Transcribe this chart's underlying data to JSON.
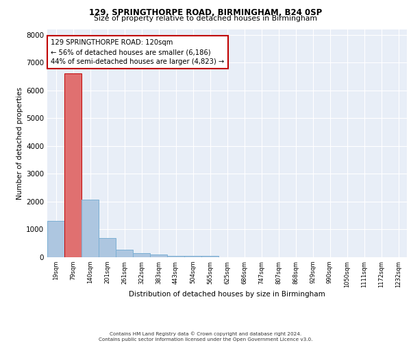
{
  "title1": "129, SPRINGTHORPE ROAD, BIRMINGHAM, B24 0SP",
  "title2": "Size of property relative to detached houses in Birmingham",
  "xlabel": "Distribution of detached houses by size in Birmingham",
  "ylabel": "Number of detached properties",
  "bin_labels": [
    "19sqm",
    "79sqm",
    "140sqm",
    "201sqm",
    "261sqm",
    "322sqm",
    "383sqm",
    "443sqm",
    "504sqm",
    "565sqm",
    "625sqm",
    "686sqm",
    "747sqm",
    "807sqm",
    "868sqm",
    "929sqm",
    "990sqm",
    "1050sqm",
    "1111sqm",
    "1172sqm",
    "1232sqm"
  ],
  "bar_values": [
    1300,
    6600,
    2080,
    690,
    280,
    150,
    100,
    60,
    50,
    55,
    0,
    0,
    0,
    0,
    0,
    0,
    0,
    0,
    0,
    0,
    0
  ],
  "highlight_bin": 1,
  "normal_bar_color": "#adc6e0",
  "normal_bar_edge": "#7bafd4",
  "highlight_bar_color": "#e07070",
  "highlight_bar_edge": "#c00000",
  "background_color": "#e8eef7",
  "grid_color": "#ffffff",
  "annotation_text": "129 SPRINGTHORPE ROAD: 120sqm\n← 56% of detached houses are smaller (6,186)\n44% of semi-detached houses are larger (4,823) →",
  "annotation_box_color": "#ffffff",
  "annotation_box_edge": "#c00000",
  "ylim": [
    0,
    8200
  ],
  "yticks": [
    0,
    1000,
    2000,
    3000,
    4000,
    5000,
    6000,
    7000,
    8000
  ],
  "footer1": "Contains HM Land Registry data © Crown copyright and database right 2024.",
  "footer2": "Contains public sector information licensed under the Open Government Licence v3.0."
}
